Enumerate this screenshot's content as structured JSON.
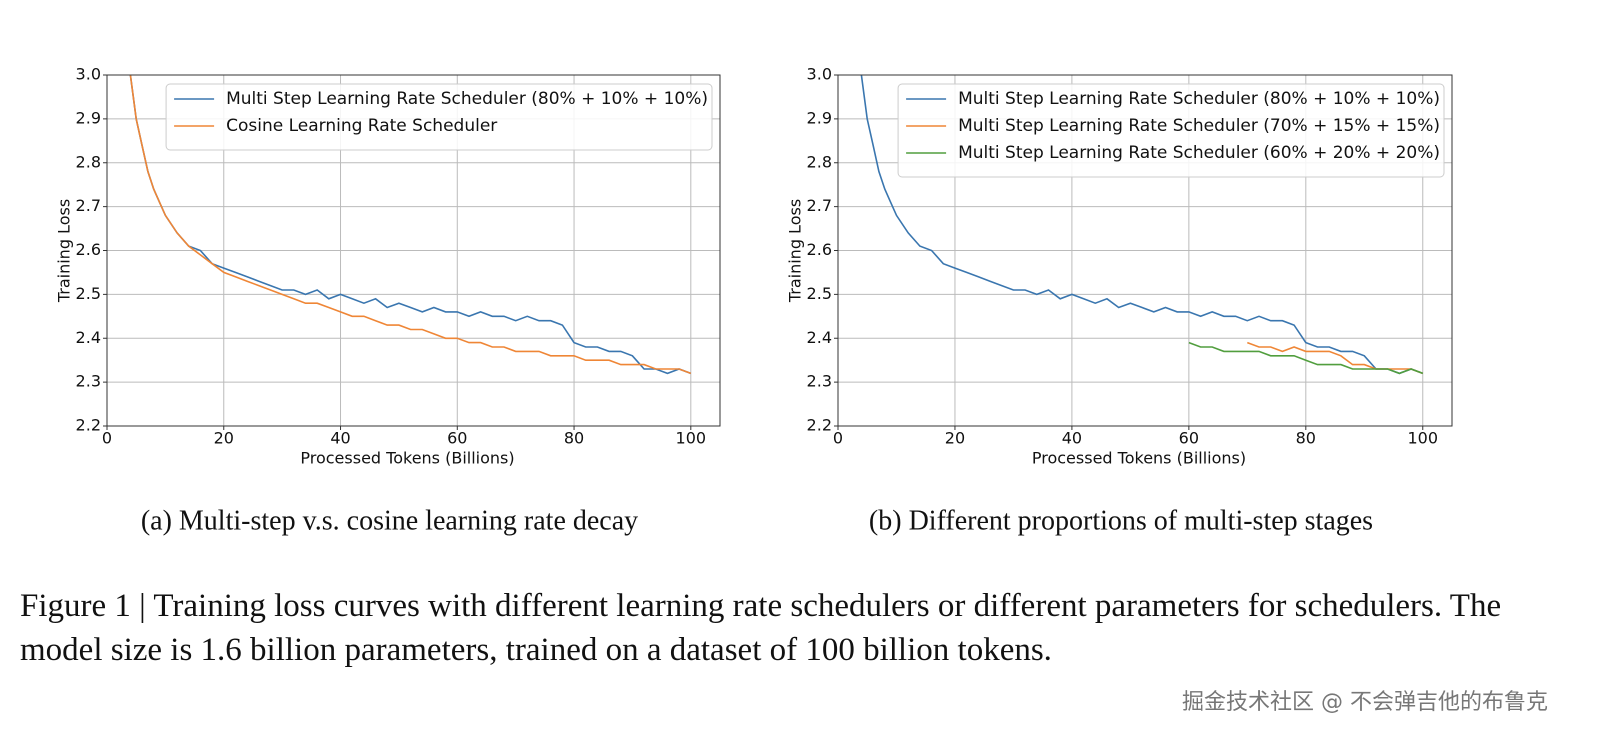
{
  "chart_data": [
    {
      "type": "line",
      "caption": "(a) Multi-step v.s. cosine learning rate decay",
      "x_label": "Processed Tokens (Billions)",
      "y_label": "Training Loss",
      "x": [
        4,
        5,
        6,
        7,
        8,
        9,
        10,
        12,
        14,
        16,
        18,
        20,
        22,
        24,
        26,
        28,
        30,
        32,
        34,
        36,
        38,
        40,
        42,
        44,
        46,
        48,
        50,
        52,
        54,
        56,
        58,
        60,
        62,
        64,
        66,
        68,
        70,
        72,
        74,
        76,
        78,
        80,
        82,
        84,
        86,
        88,
        90,
        92,
        94,
        96,
        98,
        100
      ],
      "series": [
        {
          "name": "Multi Step Learning Rate Scheduler (80% + 10% + 10%)",
          "color": "#3a76af",
          "values": [
            3.0,
            2.9,
            2.84,
            2.78,
            2.74,
            2.71,
            2.68,
            2.64,
            2.61,
            2.6,
            2.57,
            2.56,
            2.55,
            2.54,
            2.53,
            2.52,
            2.51,
            2.51,
            2.5,
            2.51,
            2.49,
            2.5,
            2.49,
            2.48,
            2.49,
            2.47,
            2.48,
            2.47,
            2.46,
            2.47,
            2.46,
            2.46,
            2.45,
            2.46,
            2.45,
            2.45,
            2.44,
            2.45,
            2.44,
            2.44,
            2.43,
            2.39,
            2.38,
            2.38,
            2.37,
            2.37,
            2.36,
            2.33,
            2.33,
            2.32,
            2.33,
            2.32
          ]
        },
        {
          "name": "Cosine Learning Rate Scheduler",
          "color": "#ef8636",
          "values": [
            3.0,
            2.9,
            2.84,
            2.78,
            2.74,
            2.71,
            2.68,
            2.64,
            2.61,
            2.59,
            2.57,
            2.55,
            2.54,
            2.53,
            2.52,
            2.51,
            2.5,
            2.49,
            2.48,
            2.48,
            2.47,
            2.46,
            2.45,
            2.45,
            2.44,
            2.43,
            2.43,
            2.42,
            2.42,
            2.41,
            2.4,
            2.4,
            2.39,
            2.39,
            2.38,
            2.38,
            2.37,
            2.37,
            2.37,
            2.36,
            2.36,
            2.36,
            2.35,
            2.35,
            2.35,
            2.34,
            2.34,
            2.34,
            2.33,
            2.33,
            2.33,
            2.32
          ]
        }
      ],
      "xlim": [
        0,
        105
      ],
      "xticks": [
        0,
        20,
        40,
        60,
        80,
        100
      ],
      "ylim": [
        2.2,
        3.0
      ],
      "yticks": [
        2.2,
        2.3,
        2.4,
        2.5,
        2.6,
        2.7,
        2.8,
        2.9,
        {
          "value": 3.0,
          "label": "3.0"
        }
      ],
      "grid": true,
      "legend": "upper-right"
    },
    {
      "type": "line",
      "caption": "(b) Different proportions of multi-step stages",
      "x_label": "Processed Tokens (Billions)",
      "y_label": "Training Loss",
      "x": [
        4,
        5,
        6,
        7,
        8,
        9,
        10,
        12,
        14,
        16,
        18,
        20,
        22,
        24,
        26,
        28,
        30,
        32,
        34,
        36,
        38,
        40,
        42,
        44,
        46,
        48,
        50,
        52,
        54,
        56,
        58,
        60,
        62,
        64,
        66,
        68,
        70,
        72,
        74,
        76,
        78,
        80,
        82,
        84,
        86,
        88,
        90,
        92,
        94,
        96,
        98,
        100
      ],
      "series": [
        {
          "name": "Multi Step Learning Rate Scheduler (80% + 10% + 10%)",
          "color": "#3a76af",
          "values": [
            3.0,
            2.9,
            2.84,
            2.78,
            2.74,
            2.71,
            2.68,
            2.64,
            2.61,
            2.6,
            2.57,
            2.56,
            2.55,
            2.54,
            2.53,
            2.52,
            2.51,
            2.51,
            2.5,
            2.51,
            2.49,
            2.5,
            2.49,
            2.48,
            2.49,
            2.47,
            2.48,
            2.47,
            2.46,
            2.47,
            2.46,
            2.46,
            2.45,
            2.46,
            2.45,
            2.45,
            2.44,
            2.45,
            2.44,
            2.44,
            2.43,
            2.39,
            2.38,
            2.38,
            2.37,
            2.37,
            2.36,
            2.33,
            2.33,
            2.32,
            2.33,
            2.32
          ]
        },
        {
          "name": "Multi Step Learning Rate Scheduler (70% + 15% + 15%)",
          "color": "#ef8636",
          "values": [
            null,
            null,
            null,
            null,
            null,
            null,
            null,
            null,
            null,
            null,
            null,
            null,
            null,
            null,
            null,
            null,
            null,
            null,
            null,
            null,
            null,
            null,
            null,
            null,
            null,
            null,
            null,
            null,
            null,
            null,
            null,
            null,
            null,
            null,
            null,
            null,
            2.39,
            2.38,
            2.38,
            2.37,
            2.38,
            2.37,
            2.37,
            2.37,
            2.36,
            2.34,
            2.34,
            2.33,
            2.33,
            2.33,
            2.33,
            2.32
          ]
        },
        {
          "name": "Multi Step Learning Rate Scheduler (60% + 20% + 20%)",
          "color": "#519e3e",
          "values": [
            null,
            null,
            null,
            null,
            null,
            null,
            null,
            null,
            null,
            null,
            null,
            null,
            null,
            null,
            null,
            null,
            null,
            null,
            null,
            null,
            null,
            null,
            null,
            null,
            null,
            null,
            null,
            null,
            null,
            null,
            null,
            2.39,
            2.38,
            2.38,
            2.37,
            2.37,
            2.37,
            2.37,
            2.36,
            2.36,
            2.36,
            2.35,
            2.34,
            2.34,
            2.34,
            2.33,
            2.33,
            2.33,
            2.33,
            2.32,
            2.33,
            2.32
          ]
        }
      ],
      "xlim": [
        0,
        105
      ],
      "xticks": [
        0,
        20,
        40,
        60,
        80,
        100
      ],
      "ylim": [
        2.2,
        3.0
      ],
      "yticks": [
        2.2,
        2.3,
        2.4,
        2.5,
        2.6,
        2.7,
        2.8,
        2.9,
        {
          "value": 3.0,
          "label": "3.0"
        }
      ],
      "grid": true,
      "legend": "upper-right"
    }
  ],
  "figure_caption": "Figure 1 | Training loss curves with different learning rate schedulers or different parameters for schedulers. The model size is 1.6 billion parameters, trained on a dataset of 100 billion tokens.",
  "watermark": "掘金技术社区 @ 不会弹吉他的布鲁克"
}
